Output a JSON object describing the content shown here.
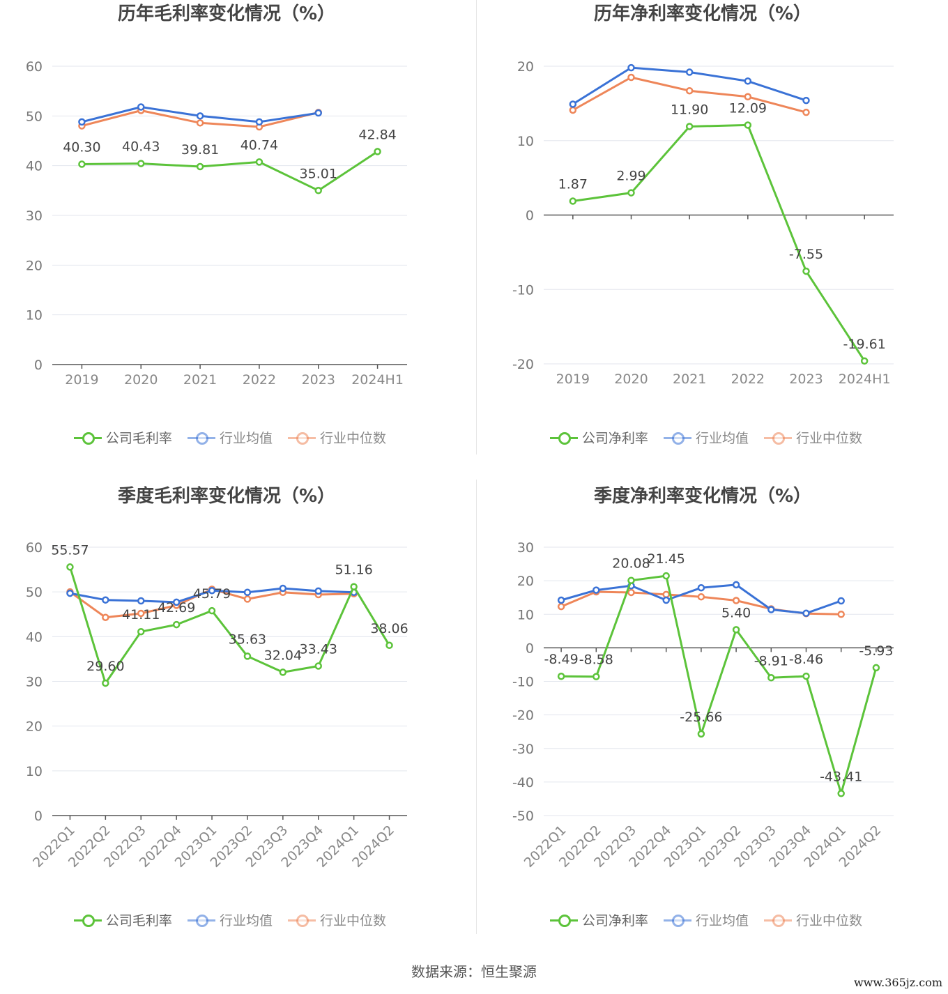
{
  "source": "数据来源：恒生聚源",
  "watermark": "www.365jz.com",
  "colors": {
    "company": "#5cc33a",
    "avg": "#3a72d6",
    "median": "#ee8659"
  },
  "charts": [
    {
      "title": "历年毛利率变化情况（%）",
      "legend": [
        "公司毛利率",
        "行业均值",
        "行业中位数"
      ]
    },
    {
      "title": "历年净利率变化情况（%）",
      "legend": [
        "公司净利率",
        "行业均值",
        "行业中位数"
      ]
    },
    {
      "title": "季度毛利率变化情况（%）",
      "legend": [
        "公司毛利率",
        "行业均值",
        "行业中位数"
      ]
    },
    {
      "title": "季度净利率变化情况（%）",
      "legend": [
        "公司净利率",
        "行业均值",
        "行业中位数"
      ]
    }
  ],
  "chart_data": [
    {
      "type": "line",
      "title": "历年毛利率变化情况（%）",
      "categories": [
        "2019",
        "2020",
        "2021",
        "2022",
        "2023",
        "2024H1"
      ],
      "ylim": [
        0,
        60
      ],
      "yticks": [
        0,
        10,
        20,
        30,
        40,
        50,
        60
      ],
      "grid": true,
      "legend_position": "bottom",
      "series": [
        {
          "name": "公司毛利率",
          "role": "company",
          "values": [
            40.3,
            40.43,
            39.81,
            40.74,
            35.01,
            42.84
          ],
          "labels": [
            "40.30",
            "40.43",
            "39.81",
            "40.74",
            "35.01",
            "42.84"
          ]
        },
        {
          "name": "行业均值",
          "role": "avg",
          "values": [
            48.8,
            51.8,
            50.0,
            48.8,
            50.6,
            null
          ]
        },
        {
          "name": "行业中位数",
          "role": "median",
          "values": [
            48.0,
            51.1,
            48.6,
            47.8,
            50.7,
            null
          ]
        }
      ]
    },
    {
      "type": "line",
      "title": "历年净利率变化情况（%）",
      "categories": [
        "2019",
        "2020",
        "2021",
        "2022",
        "2023",
        "2024H1"
      ],
      "ylim": [
        -20,
        20
      ],
      "yticks": [
        -20,
        -10,
        0,
        10,
        20
      ],
      "grid": true,
      "legend_position": "bottom",
      "series": [
        {
          "name": "公司净利率",
          "role": "company",
          "values": [
            1.87,
            2.99,
            11.9,
            12.09,
            -7.55,
            -19.61
          ],
          "labels": [
            "1.87",
            "2.99",
            "11.90",
            "12.09",
            "-7.55",
            "-19.61"
          ]
        },
        {
          "name": "行业均值",
          "role": "avg",
          "values": [
            14.9,
            19.8,
            19.2,
            18.0,
            15.4,
            null
          ]
        },
        {
          "name": "行业中位数",
          "role": "median",
          "values": [
            14.1,
            18.5,
            16.7,
            15.9,
            13.8,
            null
          ]
        }
      ]
    },
    {
      "type": "line",
      "title": "季度毛利率变化情况（%）",
      "categories": [
        "2022Q1",
        "2022Q2",
        "2022Q3",
        "2022Q4",
        "2023Q1",
        "2023Q2",
        "2023Q3",
        "2023Q4",
        "2024Q1",
        "2024Q2"
      ],
      "ylim": [
        0,
        60
      ],
      "yticks": [
        0,
        10,
        20,
        30,
        40,
        50,
        60
      ],
      "grid": true,
      "legend_position": "bottom",
      "series": [
        {
          "name": "公司毛利率",
          "role": "company",
          "values": [
            55.57,
            29.6,
            41.11,
            42.69,
            45.79,
            35.63,
            32.04,
            33.43,
            51.16,
            38.06
          ],
          "labels": [
            "55.57",
            "29.60",
            "41.11",
            "42.69",
            "45.79",
            "35.63",
            "32.04",
            "33.43",
            "51.16",
            "38.06"
          ]
        },
        {
          "name": "行业均值",
          "role": "avg",
          "values": [
            49.7,
            48.2,
            48.0,
            47.7,
            50.3,
            49.9,
            50.8,
            50.2,
            49.9,
            null
          ]
        },
        {
          "name": "行业中位数",
          "role": "median",
          "values": [
            50.0,
            44.3,
            45.2,
            47.0,
            50.6,
            48.4,
            49.9,
            49.4,
            49.6,
            null
          ]
        }
      ]
    },
    {
      "type": "line",
      "title": "季度净利率变化情况（%）",
      "categories": [
        "2022Q1",
        "2022Q2",
        "2022Q3",
        "2022Q4",
        "2023Q1",
        "2023Q2",
        "2023Q3",
        "2023Q4",
        "2024Q1",
        "2024Q2"
      ],
      "ylim": [
        -50,
        30
      ],
      "yticks": [
        -50,
        -40,
        -30,
        -20,
        -10,
        0,
        10,
        20,
        30
      ],
      "grid": true,
      "legend_position": "bottom",
      "series": [
        {
          "name": "公司净利率",
          "role": "company",
          "values": [
            -8.49,
            -8.58,
            20.08,
            21.45,
            -25.66,
            5.4,
            -8.91,
            -8.46,
            -43.41,
            -5.93
          ],
          "labels": [
            "-8.49",
            "-8.58",
            "20.08",
            "21.45",
            "-25.66",
            "5.40",
            "-8.91",
            "-8.46",
            "-43.41",
            "-5.93"
          ]
        },
        {
          "name": "行业均值",
          "role": "avg",
          "values": [
            14.2,
            17.2,
            18.5,
            14.2,
            17.9,
            18.8,
            11.4,
            10.3,
            14.0,
            null
          ]
        },
        {
          "name": "行业中位数",
          "role": "median",
          "values": [
            12.3,
            16.7,
            16.5,
            15.9,
            15.2,
            14.1,
            11.6,
            10.2,
            10.0,
            null
          ]
        }
      ]
    }
  ]
}
